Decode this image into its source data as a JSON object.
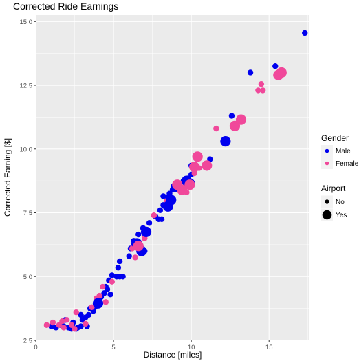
{
  "chart_data": {
    "type": "scatter",
    "title": "Corrected Ride Earnings",
    "xlabel": "Distance [miles]",
    "ylabel": "Corrected Earning [$]",
    "xlim": [
      0,
      17.6
    ],
    "ylim": [
      2.5,
      15.25
    ],
    "x_ticks": [
      0,
      5,
      10,
      15
    ],
    "x_tick_labels": [
      "0",
      "5",
      "10",
      "15"
    ],
    "y_ticks": [
      2.5,
      5.0,
      7.5,
      10.0,
      12.5,
      15.0
    ],
    "y_tick_labels": [
      "2.5",
      "5.0",
      "7.5",
      "10.0",
      "12.5",
      "15.0"
    ],
    "grid": true,
    "legend_position": "right",
    "legends": [
      {
        "title": "Gender",
        "type": "color",
        "entries": [
          {
            "label": "Male",
            "color": "#0000ee"
          },
          {
            "label": "Female",
            "color": "#f0489a"
          }
        ]
      },
      {
        "title": "Airport",
        "type": "size",
        "entries": [
          {
            "label": "No",
            "size": "small"
          },
          {
            "label": "Yes",
            "size": "large"
          }
        ]
      }
    ],
    "colors": {
      "Male": "#0000ee",
      "Female": "#f0489a",
      "panel": "#ebebeb"
    },
    "series": [
      {
        "gender": "Male",
        "airport": "No",
        "points": [
          [
            1.0,
            3.05
          ],
          [
            1.3,
            3.0
          ],
          [
            1.6,
            3.1
          ],
          [
            1.8,
            3.05
          ],
          [
            2.1,
            3.0
          ],
          [
            2.4,
            3.0
          ],
          [
            2.7,
            3.0
          ],
          [
            2.9,
            3.05
          ],
          [
            2.4,
            3.2
          ],
          [
            1.9,
            3.3
          ],
          [
            2.3,
            2.95
          ],
          [
            2.6,
            2.95
          ],
          [
            3.0,
            3.3
          ],
          [
            2.9,
            3.5
          ],
          [
            3.2,
            3.4
          ],
          [
            3.4,
            3.5
          ],
          [
            3.5,
            3.75
          ],
          [
            3.8,
            3.8
          ],
          [
            3.7,
            3.65
          ],
          [
            4.1,
            4.05
          ],
          [
            4.2,
            4.2
          ],
          [
            4.4,
            4.35
          ],
          [
            4.5,
            4.6
          ],
          [
            4.6,
            4.5
          ],
          [
            4.7,
            4.85
          ],
          [
            4.9,
            5.05
          ],
          [
            4.8,
            4.3
          ],
          [
            5.2,
            5.0
          ],
          [
            5.4,
            5.0
          ],
          [
            5.6,
            5.0
          ],
          [
            5.4,
            5.6
          ],
          [
            5.3,
            5.35
          ],
          [
            6.0,
            5.8
          ],
          [
            6.1,
            6.1
          ],
          [
            6.3,
            6.4
          ],
          [
            6.6,
            6.65
          ],
          [
            6.9,
            6.9
          ],
          [
            7.3,
            7.1
          ],
          [
            7.0,
            6.0
          ],
          [
            7.7,
            7.35
          ],
          [
            7.9,
            7.25
          ],
          [
            8.1,
            7.25
          ],
          [
            8.0,
            7.6
          ],
          [
            8.2,
            7.8
          ],
          [
            8.5,
            8.1
          ],
          [
            8.6,
            8.25
          ],
          [
            8.8,
            8.4
          ],
          [
            9.2,
            8.6
          ],
          [
            8.2,
            8.15
          ],
          [
            9.5,
            8.75
          ],
          [
            9.8,
            8.85
          ],
          [
            10.0,
            9.0
          ],
          [
            10.0,
            9.35
          ],
          [
            11.2,
            9.6
          ],
          [
            12.6,
            11.3
          ],
          [
            13.8,
            13.0
          ],
          [
            15.4,
            13.25
          ],
          [
            17.3,
            14.55
          ],
          [
            3.3,
            3.05
          ],
          [
            6.3,
            6.25
          ]
        ]
      },
      {
        "gender": "Male",
        "airport": "Yes",
        "points": [
          [
            4.0,
            3.95
          ],
          [
            6.8,
            6.0
          ],
          [
            7.1,
            6.75
          ],
          [
            8.5,
            7.75
          ],
          [
            8.7,
            8.0
          ],
          [
            9.0,
            8.5
          ],
          [
            9.9,
            8.65
          ],
          [
            9.7,
            8.75
          ],
          [
            12.2,
            10.3
          ],
          [
            6.5,
            6.3
          ]
        ]
      },
      {
        "gender": "Female",
        "airport": "No",
        "points": [
          [
            0.7,
            3.1
          ],
          [
            1.1,
            3.2
          ],
          [
            1.5,
            3.1
          ],
          [
            1.7,
            3.25
          ],
          [
            2.0,
            3.3
          ],
          [
            2.3,
            3.1
          ],
          [
            2.6,
            3.6
          ],
          [
            2.5,
            2.95
          ],
          [
            3.2,
            3.15
          ],
          [
            3.6,
            3.8
          ],
          [
            3.9,
            4.15
          ],
          [
            4.1,
            4.25
          ],
          [
            4.3,
            4.6
          ],
          [
            4.5,
            4.0
          ],
          [
            4.9,
            4.8
          ],
          [
            6.2,
            6.1
          ],
          [
            6.4,
            5.75
          ],
          [
            6.7,
            6.1
          ],
          [
            7.0,
            6.5
          ],
          [
            7.6,
            7.4
          ],
          [
            8.4,
            7.95
          ],
          [
            9.7,
            8.3
          ],
          [
            10.2,
            9.05
          ],
          [
            11.6,
            10.8
          ],
          [
            12.8,
            10.9
          ],
          [
            14.3,
            12.3
          ],
          [
            14.5,
            12.55
          ],
          [
            14.6,
            12.3
          ],
          [
            1.8,
            3.0
          ],
          [
            10.5,
            9.25
          ]
        ]
      },
      {
        "gender": "Female",
        "airport": "Yes",
        "points": [
          [
            6.6,
            6.2
          ],
          [
            9.1,
            8.6
          ],
          [
            9.4,
            8.4
          ],
          [
            9.9,
            8.6
          ],
          [
            10.2,
            9.3
          ],
          [
            10.4,
            9.7
          ],
          [
            11.0,
            9.35
          ],
          [
            12.8,
            10.9
          ],
          [
            13.2,
            11.15
          ],
          [
            15.6,
            12.9
          ],
          [
            15.8,
            13.0
          ]
        ]
      }
    ]
  }
}
